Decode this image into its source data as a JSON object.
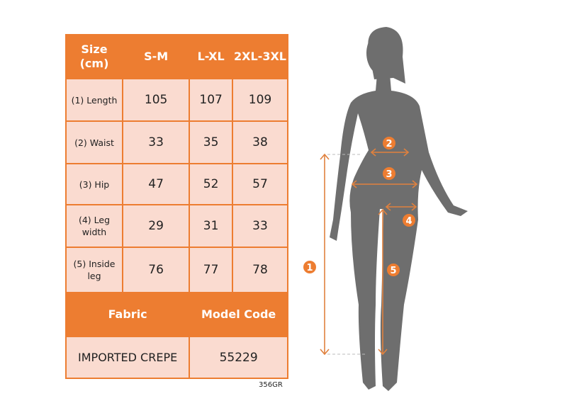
{
  "table": {
    "header": [
      "Size (cm)",
      "S-M",
      "L-XL",
      "2XL-3XL"
    ],
    "rows": [
      {
        "label": "(1) Length",
        "values": [
          "105",
          "107",
          "109"
        ]
      },
      {
        "label": "(2) Waist",
        "values": [
          "33",
          "35",
          "38"
        ]
      },
      {
        "label": "(3) Hip",
        "values": [
          "47",
          "52",
          "57"
        ]
      },
      {
        "label": "(4) Leg width",
        "values": [
          "29",
          "31",
          "33"
        ]
      },
      {
        "label": "(5) Inside leg",
        "values": [
          "76",
          "77",
          "78"
        ]
      }
    ],
    "footer_header": [
      "Fabric",
      "Model Code"
    ],
    "footer_values": [
      "IMPORTED CREPE",
      "55229"
    ]
  },
  "code": "356GR",
  "figure": {
    "markers": [
      "1",
      "2",
      "3",
      "4",
      "5"
    ]
  },
  "colors": {
    "accent": "#ED7D31",
    "cell": "#FADBD0",
    "silhouette": "#6E6E6E"
  }
}
